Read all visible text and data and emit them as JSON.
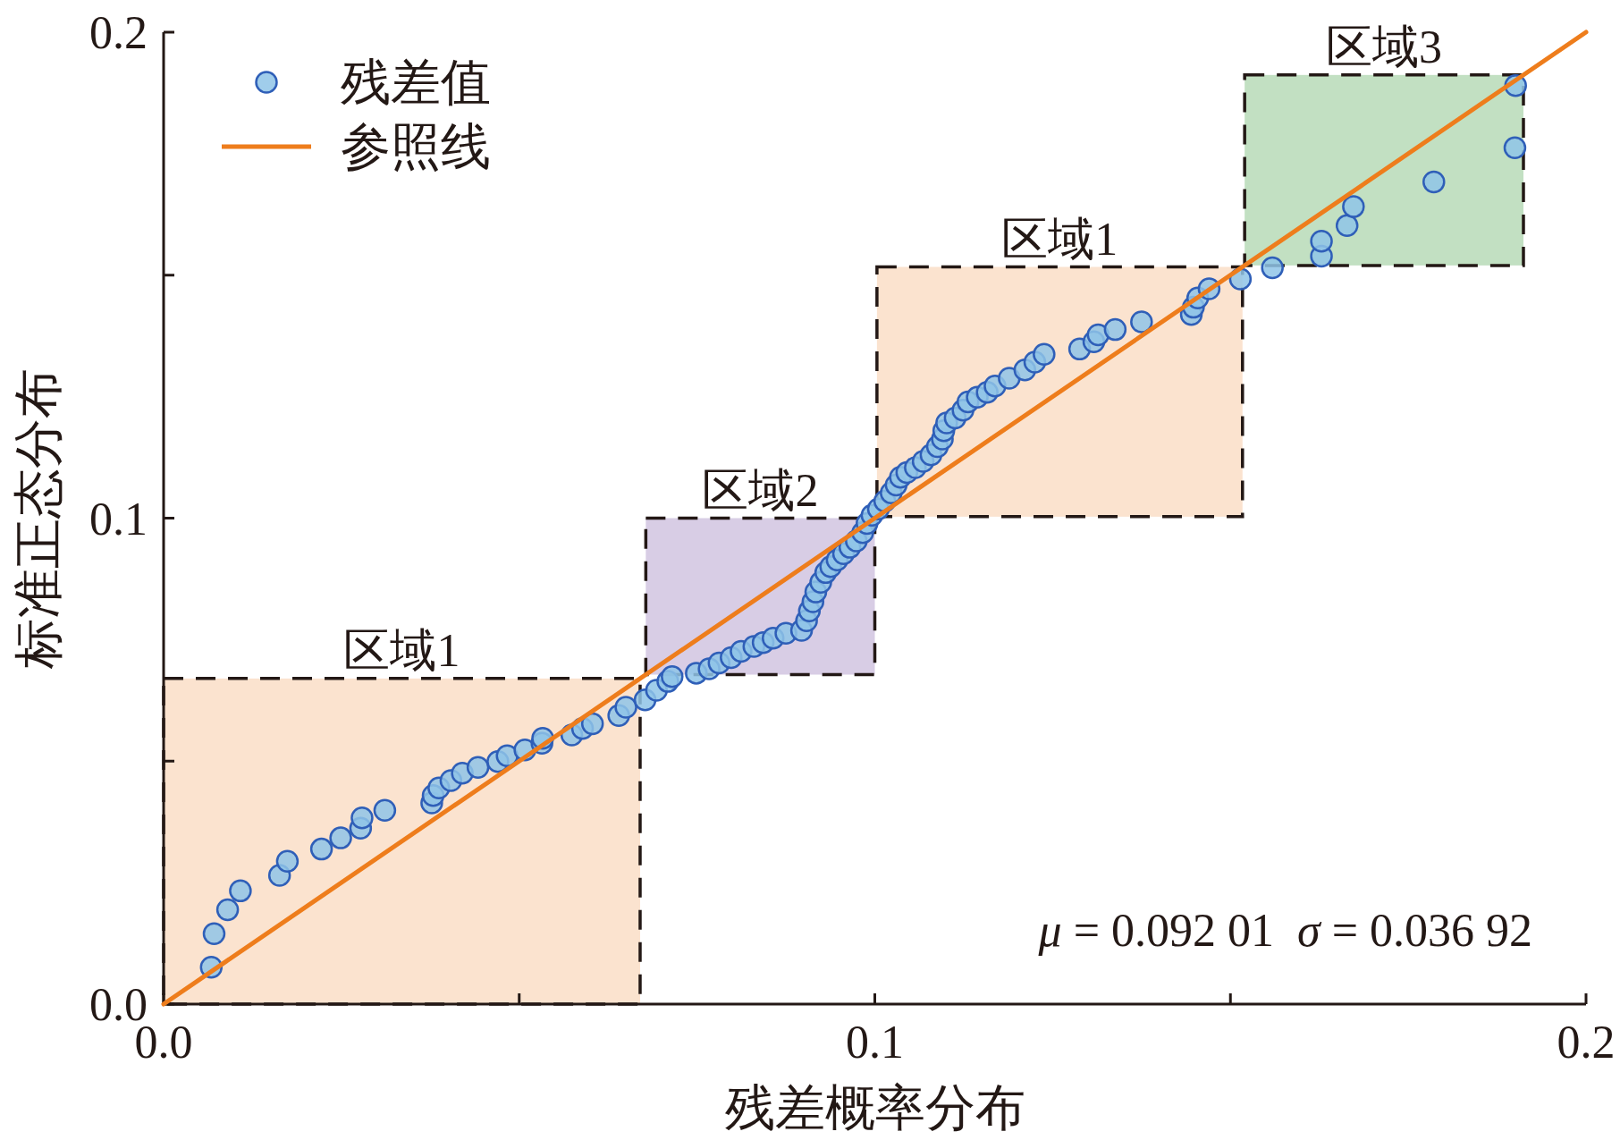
{
  "chart_data": {
    "type": "scatter",
    "xlabel": "残差概率分布",
    "ylabel": "标准正态分布",
    "xlim": [
      0,
      0.2
    ],
    "ylim": [
      0,
      0.2
    ],
    "xticks": [
      {
        "value": 0,
        "label": "0.0"
      },
      {
        "value": 0.05,
        "label": null
      },
      0.1,
      {
        "value": 0.15,
        "label": null
      },
      0.2
    ],
    "yticks": [
      {
        "value": 0,
        "label": "0.0"
      },
      {
        "value": 0.05,
        "label": null
      },
      0.1,
      {
        "value": 0.15,
        "label": null
      },
      0.2
    ],
    "grid": false,
    "legend": "top left",
    "series": [
      {
        "name": "残差值",
        "marker": "circle",
        "color": "#8fc4e8",
        "x": [
          0.0067,
          0.0071,
          0.009,
          0.0108,
          0.0163,
          0.0174,
          0.0222,
          0.0249,
          0.0277,
          0.0279,
          0.0311,
          0.0377,
          0.0379,
          0.0387,
          0.0404,
          0.042,
          0.0442,
          0.047,
          0.0483,
          0.0508,
          0.0532,
          0.0533,
          0.0574,
          0.0589,
          0.0603,
          0.064,
          0.065,
          0.0677,
          0.0693,
          0.0709,
          0.0715,
          0.0749,
          0.0767,
          0.0781,
          0.0798,
          0.0812,
          0.083,
          0.0843,
          0.0857,
          0.0875,
          0.0897,
          0.0904,
          0.0908,
          0.0913,
          0.0917,
          0.0924,
          0.0931,
          0.0938,
          0.0947,
          0.0956,
          0.0965,
          0.0974,
          0.0983,
          0.0989,
          0.0996,
          0.1005,
          0.1014,
          0.1023,
          0.103,
          0.1036,
          0.1045,
          0.1057,
          0.1068,
          0.1079,
          0.1088,
          0.1095,
          0.1097,
          0.1101,
          0.1113,
          0.1124,
          0.1131,
          0.1144,
          0.1158,
          0.1169,
          0.1189,
          0.1211,
          0.1225,
          0.1238,
          0.1288,
          0.1308,
          0.1314,
          0.1338,
          0.1375,
          0.1445,
          0.1448,
          0.1454,
          0.147,
          0.1514,
          0.1559,
          0.1628,
          0.1628,
          0.1664,
          0.1673,
          0.1786,
          0.19,
          0.1901
        ],
        "values": [
          0.0076,
          0.0145,
          0.0194,
          0.0233,
          0.0265,
          0.0294,
          0.0319,
          0.0342,
          0.0362,
          0.0383,
          0.0399,
          0.0414,
          0.0429,
          0.0445,
          0.046,
          0.0475,
          0.0487,
          0.0499,
          0.0511,
          0.0523,
          0.0537,
          0.0547,
          0.0554,
          0.0567,
          0.0577,
          0.0594,
          0.0611,
          0.0626,
          0.0646,
          0.0664,
          0.0674,
          0.0681,
          0.069,
          0.0702,
          0.0713,
          0.0726,
          0.0736,
          0.0744,
          0.0753,
          0.0763,
          0.0769,
          0.0789,
          0.0809,
          0.0828,
          0.0848,
          0.0868,
          0.0888,
          0.09,
          0.0914,
          0.0927,
          0.094,
          0.0953,
          0.097,
          0.0989,
          0.1006,
          0.1019,
          0.1035,
          0.1052,
          0.1068,
          0.1084,
          0.1094,
          0.1104,
          0.1117,
          0.113,
          0.1147,
          0.1163,
          0.118,
          0.1196,
          0.1206,
          0.1222,
          0.1239,
          0.1249,
          0.1259,
          0.1272,
          0.1288,
          0.1305,
          0.1321,
          0.1337,
          0.1348,
          0.1363,
          0.1377,
          0.1388,
          0.1404,
          0.1419,
          0.1434,
          0.1453,
          0.1472,
          0.1492,
          0.1515,
          0.1539,
          0.157,
          0.1602,
          0.1641,
          0.1692,
          0.1762,
          0.189
        ]
      },
      {
        "name": "参照线",
        "type": "line",
        "marker": "none",
        "color": "#ee7d1c",
        "x": [
          0,
          0.2
        ],
        "values": [
          0,
          0.2
        ]
      }
    ],
    "bands": [
      {
        "axis": "x",
        "from": 0,
        "to": 0.067,
        "label": "区域1",
        "color": "#fbe3cf"
      },
      {
        "axis": "x",
        "from": 0.0678,
        "to": 0.1,
        "label": "区域2",
        "color": "#d8cde5"
      },
      {
        "axis": "x",
        "from": 0.1003,
        "to": 0.1517,
        "label": "区域1",
        "color": "#fbe3cf"
      },
      {
        "axis": "x",
        "from": 0.152,
        "to": 0.1912,
        "label": "区域3",
        "color": "#c2e0c2"
      }
    ],
    "annotations": [
      "μ = 0.092 01  σ = 0.036 92"
    ]
  }
}
